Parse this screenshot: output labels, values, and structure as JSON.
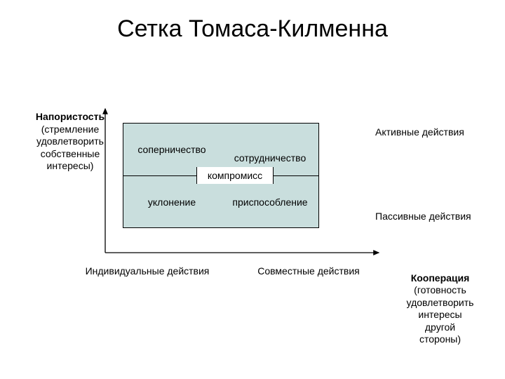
{
  "title": "Сетка Томаса-Килменна",
  "yAxis": {
    "topLabel": "Напористость\n(стремление\nудовлетворить\nсобственные\nинтересы)"
  },
  "xAxis": {
    "leftLabel": "Индивидуальные действия",
    "rightLabel": "Совместные действия"
  },
  "rightSide": {
    "top": "Активные действия",
    "bottom": "Пассивные действия",
    "cooperation": "Кооперация\n(готовность\nудовлетворить\nинтересы\nдругой\nстороны)"
  },
  "cells": {
    "topLeft": "соперничество",
    "topRight": "сотрудничество",
    "bottomLeft": "уклонение",
    "bottomRight": "приспособление",
    "center": "компромисс"
  },
  "colors": {
    "gridFill": "#c9dedd",
    "gridBorder": "#000000",
    "axis": "#000000",
    "background": "#ffffff"
  },
  "geometry": {
    "gridLeft": 175,
    "gridTop": 175,
    "gridWidth": 280,
    "gridHeight": 150,
    "centerStripLeft": 280,
    "centerStripTop": 238,
    "centerStripWidth": 110,
    "centerStripHeight": 24,
    "hDividerY": 250,
    "axisOriginX": 150,
    "axisOriginY": 360,
    "axisTopY": 155,
    "axisRightX": 540
  }
}
